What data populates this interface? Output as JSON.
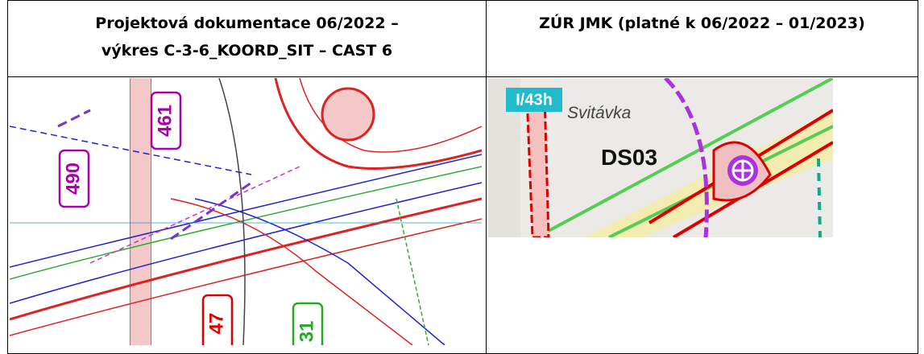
{
  "header": {
    "left": [
      "Projektová dokumentace 06/2022 –",
      "výkres C-3-6_KOORD_SIT – CAST 6"
    ],
    "right": "ZÚR JMK (platné k 06/2022 – 01/2023)"
  },
  "left_map": {
    "labels": [
      "461",
      "490",
      "47",
      "31"
    ]
  },
  "right_map": {
    "labels": [
      "I/43h",
      "Svitávka",
      "DS03"
    ]
  }
}
